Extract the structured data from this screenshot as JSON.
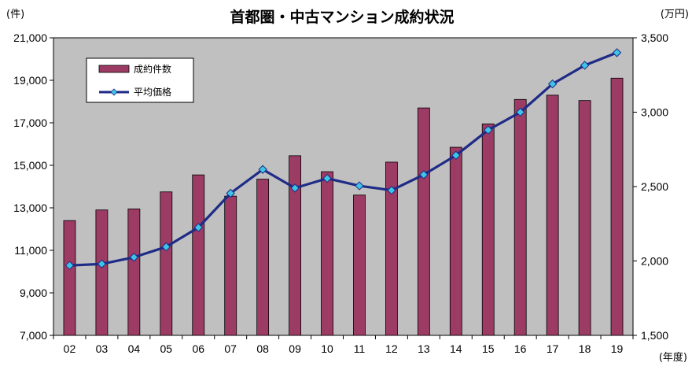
{
  "chart_data": {
    "type": "bar",
    "title": "首都圏・中古マンション成約状況",
    "categories": [
      "02",
      "03",
      "04",
      "05",
      "06",
      "07",
      "08",
      "09",
      "10",
      "11",
      "12",
      "13",
      "14",
      "15",
      "16",
      "17",
      "18",
      "19"
    ],
    "series": [
      {
        "name": "成約件数",
        "type": "bar",
        "axis": "left",
        "color": "#9c3b64",
        "values": [
          12400,
          12900,
          12950,
          13750,
          14550,
          13550,
          14350,
          15450,
          14700,
          13600,
          15150,
          17700,
          15850,
          16950,
          18100,
          18300,
          18050,
          19100
        ]
      },
      {
        "name": "平均価格",
        "type": "line",
        "axis": "right",
        "color": "#1e2b87",
        "marker_color": "#3ec5e6",
        "values": [
          1970,
          1980,
          2025,
          2095,
          2225,
          2455,
          2615,
          2490,
          2555,
          2505,
          2475,
          2580,
          2710,
          2880,
          3000,
          3190,
          3315,
          3400
        ]
      }
    ],
    "left_axis": {
      "unit": "(件)",
      "ylim": [
        7000,
        21000
      ],
      "ticks": [
        7000,
        9000,
        11000,
        13000,
        15000,
        17000,
        19000,
        21000
      ],
      "tick_labels": [
        "7,000",
        "9,000",
        "11,000",
        "13,000",
        "15,000",
        "17,000",
        "19,000",
        "21,000"
      ]
    },
    "right_axis": {
      "unit": "(万円)",
      "ylim": [
        1500,
        3500
      ],
      "ticks": [
        1500,
        2000,
        2500,
        3000,
        3500
      ],
      "tick_labels": [
        "1,500",
        "2,000",
        "2,500",
        "3,000",
        "3,500"
      ]
    },
    "x_unit": "(年度)",
    "grid": false,
    "legend_position": "top-left",
    "plot_background": "#c0c0c0"
  }
}
